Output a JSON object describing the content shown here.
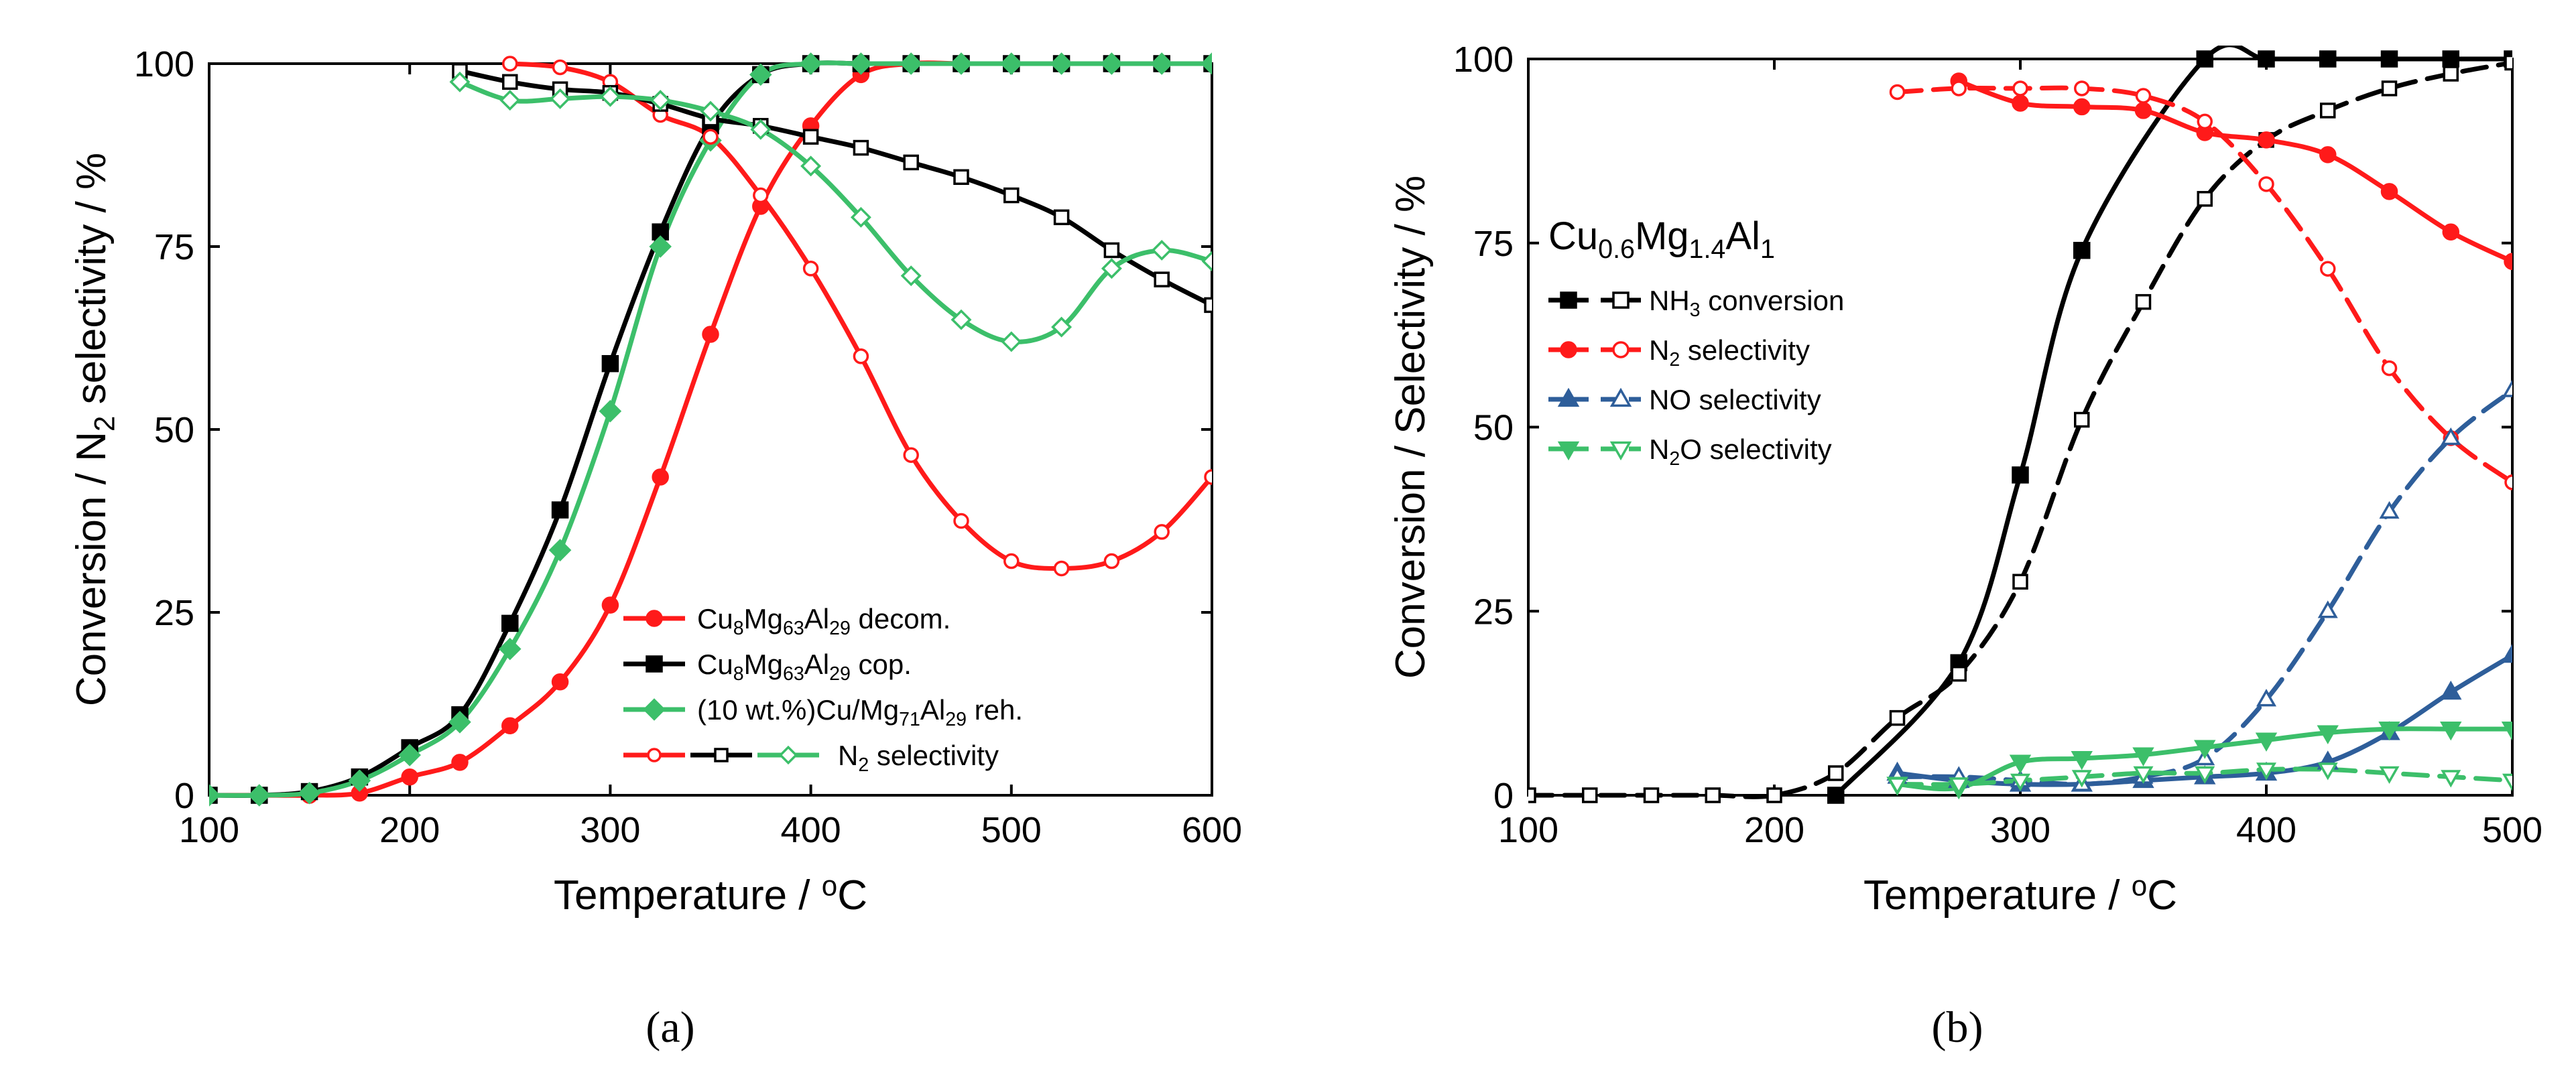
{
  "figure": {
    "panel_labels": [
      "(a)",
      "(b)"
    ]
  },
  "chart_data": [
    {
      "type": "line",
      "panel": "a",
      "title": "",
      "xlabel": "Temperature / °C",
      "ylabel": "Conversion / N₂ selectivity / %",
      "xlim": [
        100,
        600
      ],
      "ylim": [
        0,
        100
      ],
      "xticks": [
        100,
        200,
        300,
        400,
        500,
        600
      ],
      "yticks": [
        0,
        25,
        50,
        75,
        100
      ],
      "grid": false,
      "legend_position": "lower-right",
      "legend": [
        {
          "label": "Cu8Mg63Al29 decom.",
          "color": "#ff1a1a",
          "marker": "circle"
        },
        {
          "label": "Cu8Mg63Al29 cop.",
          "color": "#000000",
          "marker": "square"
        },
        {
          "label": "(10 wt.%)Cu/Mg71Al29 reh.",
          "color": "#3cbf6a",
          "marker": "diamond"
        },
        {
          "label": "N2 selectivity",
          "marker": "open"
        }
      ],
      "series": [
        {
          "name": "Cu8Mg63Al29 decom.",
          "kind": "conversion",
          "color": "#ff1a1a",
          "marker": "circle",
          "filled": true,
          "x": [
            100,
            125,
            150,
            175,
            200,
            225,
            250,
            275,
            300,
            325,
            350,
            375,
            400,
            425,
            450,
            475,
            500,
            525,
            550,
            575,
            600
          ],
          "y": [
            0,
            0,
            0,
            0.3,
            2.5,
            4.5,
            9.5,
            15.5,
            26,
            43.5,
            63,
            80.5,
            91.5,
            98.5,
            100,
            100,
            100,
            100,
            100,
            100,
            100
          ]
        },
        {
          "name": "Cu8Mg63Al29 cop.",
          "kind": "conversion",
          "color": "#000000",
          "marker": "square",
          "filled": true,
          "x": [
            100,
            125,
            150,
            175,
            200,
            225,
            250,
            275,
            300,
            325,
            350,
            375,
            400,
            425,
            450,
            475,
            500,
            525,
            550,
            575,
            600
          ],
          "y": [
            0,
            0,
            0.5,
            2.5,
            6.5,
            11,
            23.5,
            39,
            59,
            77,
            91.5,
            98.5,
            100,
            100,
            100,
            100,
            100,
            100,
            100,
            100,
            100
          ]
        },
        {
          "name": "(10 wt.%)Cu/Mg71Al29 reh.",
          "kind": "conversion",
          "color": "#3cbf6a",
          "marker": "diamond",
          "filled": true,
          "x": [
            100,
            125,
            150,
            175,
            200,
            225,
            250,
            275,
            300,
            325,
            350,
            375,
            400,
            425,
            450,
            475,
            500,
            525,
            550,
            575,
            600
          ],
          "y": [
            0,
            0,
            0.3,
            2,
            5.5,
            10,
            20,
            33.5,
            52.5,
            75,
            89.5,
            98.5,
            100,
            100,
            100,
            100,
            100,
            100,
            100,
            100,
            100
          ]
        },
        {
          "name": "Cu8Mg63Al29 decom. N2 selectivity",
          "kind": "selectivity",
          "color": "#ff1a1a",
          "marker": "circle",
          "filled": false,
          "x": [
            250,
            275,
            300,
            325,
            350,
            375,
            400,
            425,
            450,
            475,
            500,
            525,
            550,
            575,
            600
          ],
          "y": [
            100,
            99.5,
            97.5,
            93,
            90,
            82,
            72,
            60,
            46.5,
            37.5,
            32,
            31,
            32,
            36,
            43.5
          ]
        },
        {
          "name": "Cu8Mg63Al29 cop. N2 selectivity",
          "kind": "selectivity",
          "color": "#000000",
          "marker": "square",
          "filled": false,
          "x": [
            225,
            250,
            275,
            300,
            325,
            350,
            375,
            400,
            425,
            450,
            475,
            500,
            525,
            550,
            575,
            600
          ],
          "y": [
            99,
            97.5,
            96.5,
            96,
            94.5,
            92.5,
            91.5,
            90,
            88.5,
            86.5,
            84.5,
            82,
            79,
            74.5,
            70.5,
            67
          ]
        },
        {
          "name": "(10 wt.%)Cu/Mg71Al29 reh. N2 selectivity",
          "kind": "selectivity",
          "color": "#3cbf6a",
          "marker": "diamond",
          "filled": false,
          "x": [
            225,
            250,
            275,
            300,
            325,
            350,
            375,
            400,
            425,
            450,
            475,
            500,
            525,
            550,
            575,
            600
          ],
          "y": [
            97.5,
            95,
            95.2,
            95.5,
            95,
            93.5,
            91,
            86,
            79,
            71,
            65,
            62,
            64,
            72,
            74.5,
            73
          ]
        }
      ]
    },
    {
      "type": "line",
      "panel": "b",
      "title": "Cu0.6Mg1.4Al1",
      "xlabel": "Temperature / °C",
      "ylabel": "Conversion / Selectivity / %",
      "xlim": [
        100,
        500
      ],
      "ylim": [
        0,
        100
      ],
      "xticks": [
        100,
        200,
        300,
        400,
        500
      ],
      "yticks": [
        0,
        25,
        50,
        75,
        100
      ],
      "grid": false,
      "legend_position": "upper-left",
      "legend": [
        {
          "label": "NH3 conversion",
          "color": "#000000",
          "marker": "square"
        },
        {
          "label": "N2 selectivity",
          "color": "#ff1a1a",
          "marker": "circle"
        },
        {
          "label": "NO selectivity",
          "color": "#2e5e9a",
          "marker": "triangle-up"
        },
        {
          "label": "N2O selectivity",
          "color": "#3cbf6a",
          "marker": "triangle-down"
        }
      ],
      "series": [
        {
          "name": "NH3 conversion",
          "color": "#000000",
          "marker": "square",
          "filled": true,
          "x": [
            225,
            275,
            300,
            325,
            375,
            400,
            425,
            450,
            475,
            500
          ],
          "y": [
            0,
            18,
            43.5,
            74,
            100,
            100,
            100,
            100,
            100,
            100
          ]
        },
        {
          "name": "NH3 conversion",
          "color": "#000000",
          "marker": "square",
          "filled": false,
          "x": [
            100,
            125,
            150,
            175,
            200,
            225,
            250,
            275,
            300,
            325,
            350,
            375,
            400,
            425,
            450,
            475,
            500
          ],
          "y": [
            0,
            0,
            0,
            0,
            0,
            3,
            10.5,
            16.5,
            29,
            51,
            67,
            81,
            89,
            93,
            96,
            98,
            99.5
          ]
        },
        {
          "name": "N2 selectivity",
          "color": "#ff1a1a",
          "marker": "circle",
          "filled": true,
          "x": [
            275,
            300,
            325,
            350,
            375,
            400,
            425,
            450,
            475,
            500
          ],
          "y": [
            97,
            94,
            93.5,
            93,
            90,
            89,
            87,
            82,
            76.5,
            72.5
          ]
        },
        {
          "name": "N2 selectivity",
          "color": "#ff1a1a",
          "marker": "circle",
          "filled": false,
          "x": [
            250,
            275,
            300,
            325,
            350,
            375,
            400,
            425,
            450,
            475,
            500
          ],
          "y": [
            95.5,
            96,
            96,
            96,
            95,
            91.5,
            83,
            71.5,
            58,
            48.5,
            42.5
          ]
        },
        {
          "name": "NO selectivity",
          "color": "#2e5e9a",
          "marker": "triangle-up",
          "filled": true,
          "x": [
            250,
            275,
            300,
            325,
            350,
            375,
            400,
            425,
            450,
            475,
            500
          ],
          "y": [
            3,
            2,
            1.5,
            1.5,
            2,
            2.5,
            3,
            4.5,
            8.5,
            14,
            19
          ]
        },
        {
          "name": "NO selectivity",
          "color": "#2e5e9a",
          "marker": "triangle-up",
          "filled": false,
          "x": [
            250,
            275,
            300,
            325,
            350,
            375,
            400,
            425,
            450,
            475,
            500
          ],
          "y": [
            2.5,
            2.5,
            2,
            1.5,
            2.5,
            5,
            13,
            25,
            38.5,
            48.5,
            55
          ]
        },
        {
          "name": "N2O selectivity",
          "color": "#3cbf6a",
          "marker": "triangle-down",
          "filled": true,
          "x": [
            250,
            275,
            300,
            325,
            350,
            375,
            400,
            425,
            450,
            475,
            500
          ],
          "y": [
            1.5,
            1,
            4.5,
            5,
            5.5,
            6.5,
            7.5,
            8.5,
            9,
            9,
            9
          ]
        },
        {
          "name": "N2O selectivity",
          "color": "#3cbf6a",
          "marker": "triangle-down",
          "filled": false,
          "x": [
            250,
            275,
            300,
            325,
            350,
            375,
            400,
            425,
            450,
            475,
            500
          ],
          "y": [
            1.5,
            1.5,
            2,
            2.5,
            3,
            3,
            3.5,
            3.5,
            3,
            2.5,
            2
          ]
        }
      ]
    }
  ]
}
